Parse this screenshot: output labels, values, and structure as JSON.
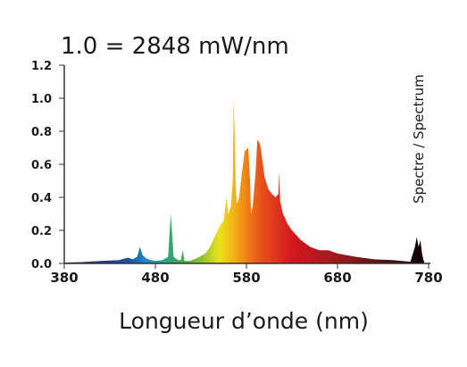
{
  "chart_data": {
    "type": "area",
    "title": "1.0 = 2848 mW/nm",
    "xlabel": "Longueur d’onde (nm)",
    "ylabel": "",
    "legend_label": "Spectre / Spectrum",
    "xlim": [
      380,
      780
    ],
    "ylim": [
      0,
      1.2
    ],
    "x_ticks": [
      "380",
      "480",
      "580",
      "680",
      "780"
    ],
    "y_ticks": [
      "0.0",
      "0.2",
      "0.4",
      "0.6",
      "0.8",
      "1.0",
      "1.2"
    ],
    "grid": false,
    "series": [
      {
        "x": [
          380,
          400,
          420,
          440,
          450,
          455,
          460,
          463,
          466,
          470,
          475,
          480,
          488,
          494,
          497,
          500,
          505,
          508,
          510,
          512,
          518,
          525,
          535,
          540,
          545,
          550,
          555,
          558,
          560,
          563,
          565,
          566,
          567,
          568,
          569,
          570,
          572,
          575,
          578,
          582,
          584,
          585,
          587,
          590,
          592,
          595,
          598,
          600,
          604,
          608,
          612,
          615,
          616,
          617,
          620,
          622,
          625,
          630,
          640,
          650,
          660,
          670,
          680,
          690,
          700,
          720,
          740,
          760,
          765,
          767,
          769,
          771,
          773,
          775
        ],
        "y": [
          0.005,
          0.008,
          0.015,
          0.02,
          0.035,
          0.025,
          0.04,
          0.1,
          0.05,
          0.03,
          0.02,
          0.015,
          0.02,
          0.04,
          0.3,
          0.04,
          0.02,
          0.02,
          0.08,
          0.015,
          0.015,
          0.03,
          0.06,
          0.1,
          0.16,
          0.22,
          0.26,
          0.4,
          0.3,
          0.35,
          0.5,
          1.0,
          0.8,
          0.5,
          0.38,
          0.36,
          0.4,
          0.55,
          0.68,
          0.7,
          0.5,
          0.3,
          0.35,
          0.55,
          0.75,
          0.72,
          0.6,
          0.52,
          0.45,
          0.42,
          0.4,
          0.42,
          0.55,
          0.38,
          0.3,
          0.28,
          0.24,
          0.2,
          0.14,
          0.1,
          0.08,
          0.08,
          0.06,
          0.05,
          0.04,
          0.025,
          0.02,
          0.01,
          0.1,
          0.16,
          0.1,
          0.14,
          0.05,
          0.01
        ]
      }
    ]
  }
}
